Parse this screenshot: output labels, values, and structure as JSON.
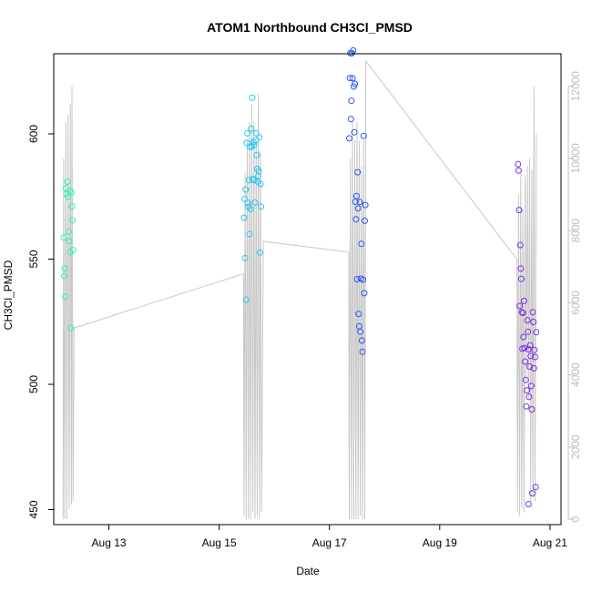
{
  "chart_data": {
    "type": "scatter",
    "title": "ATOM1 Northbound CH3Cl_PMSD",
    "xlabel": "Date",
    "ylabel": "CH3Cl_PMSD",
    "x_unit": "days (Aug 2020 day-of-month)",
    "xlim": [
      12.0,
      21.2
    ],
    "ylim": [
      444,
      632
    ],
    "y2lim": [
      -150,
      12900
    ],
    "x_ticks": [
      {
        "value": 13,
        "label": "Aug 13"
      },
      {
        "value": 15,
        "label": "Aug 15"
      },
      {
        "value": 17,
        "label": "Aug 17"
      },
      {
        "value": 19,
        "label": "Aug 19"
      },
      {
        "value": 21,
        "label": "Aug 21"
      }
    ],
    "y_ticks": [
      450,
      500,
      550,
      600
    ],
    "y2_ticks": [
      0,
      2000,
      4000,
      6000,
      8000,
      10000,
      12000
    ],
    "colors": {
      "axes": "#000000",
      "secondary_axis": "#bdbdbd",
      "line": "#c8c8c8",
      "cluster1": "#33f0b8",
      "cluster2": "#27c8f0",
      "cluster3": "#2a55f0",
      "cluster4": "#7a33e0"
    },
    "series": [
      {
        "color": "#33f0b8",
        "points": [
          {
            "x": 12.18,
            "y": 558.6
          },
          {
            "x": 12.19,
            "y": 543.2
          },
          {
            "x": 12.2,
            "y": 546.3
          },
          {
            "x": 12.21,
            "y": 535.0
          },
          {
            "x": 12.22,
            "y": 578.2
          },
          {
            "x": 12.23,
            "y": 576.0
          },
          {
            "x": 12.25,
            "y": 580.9
          },
          {
            "x": 12.26,
            "y": 574.9
          },
          {
            "x": 12.27,
            "y": 561.0
          },
          {
            "x": 12.28,
            "y": 557.2
          },
          {
            "x": 12.29,
            "y": 577.3
          },
          {
            "x": 12.3,
            "y": 552.8
          },
          {
            "x": 12.31,
            "y": 522.5
          },
          {
            "x": 12.32,
            "y": 576.6
          },
          {
            "x": 12.33,
            "y": 571.1
          },
          {
            "x": 12.34,
            "y": 565.5
          },
          {
            "x": 12.35,
            "y": 553.6
          }
        ]
      },
      {
        "color": "#27c8f0",
        "points": [
          {
            "x": 15.45,
            "y": 566.5
          },
          {
            "x": 15.46,
            "y": 574.0
          },
          {
            "x": 15.47,
            "y": 550.4
          },
          {
            "x": 15.48,
            "y": 577.8
          },
          {
            "x": 15.49,
            "y": 533.8
          },
          {
            "x": 15.5,
            "y": 596.4
          },
          {
            "x": 15.51,
            "y": 600.2
          },
          {
            "x": 15.52,
            "y": 572.5
          },
          {
            "x": 15.53,
            "y": 570.9
          },
          {
            "x": 15.54,
            "y": 581.5
          },
          {
            "x": 15.55,
            "y": 560.0
          },
          {
            "x": 15.56,
            "y": 594.8
          },
          {
            "x": 15.57,
            "y": 570.0
          },
          {
            "x": 15.58,
            "y": 602.0
          },
          {
            "x": 15.59,
            "y": 595.0
          },
          {
            "x": 15.6,
            "y": 614.4
          },
          {
            "x": 15.61,
            "y": 582.0
          },
          {
            "x": 15.62,
            "y": 596.7
          },
          {
            "x": 15.63,
            "y": 595.5
          },
          {
            "x": 15.64,
            "y": 581.5
          },
          {
            "x": 15.65,
            "y": 572.6
          },
          {
            "x": 15.66,
            "y": 597.4
          },
          {
            "x": 15.67,
            "y": 600.3
          },
          {
            "x": 15.68,
            "y": 591.5
          },
          {
            "x": 15.69,
            "y": 586.0
          },
          {
            "x": 15.7,
            "y": 580.9
          },
          {
            "x": 15.71,
            "y": 583.2
          },
          {
            "x": 15.72,
            "y": 585.1
          },
          {
            "x": 15.73,
            "y": 598.6
          },
          {
            "x": 15.74,
            "y": 552.6
          },
          {
            "x": 15.75,
            "y": 580.0
          },
          {
            "x": 15.76,
            "y": 571.0
          }
        ]
      },
      {
        "color": "#2a55f0",
        "points": [
          {
            "x": 17.36,
            "y": 598.2
          },
          {
            "x": 17.37,
            "y": 622.3
          },
          {
            "x": 17.38,
            "y": 632.2
          },
          {
            "x": 17.39,
            "y": 605.9
          },
          {
            "x": 17.4,
            "y": 613.2
          },
          {
            "x": 17.41,
            "y": 632.2
          },
          {
            "x": 17.42,
            "y": 622.2
          },
          {
            "x": 17.43,
            "y": 633.3
          },
          {
            "x": 17.44,
            "y": 618.9
          },
          {
            "x": 17.45,
            "y": 600.6
          },
          {
            "x": 17.46,
            "y": 620.0
          },
          {
            "x": 17.47,
            "y": 572.9
          },
          {
            "x": 17.48,
            "y": 565.9
          },
          {
            "x": 17.49,
            "y": 575.2
          },
          {
            "x": 17.5,
            "y": 542.0
          },
          {
            "x": 17.51,
            "y": 584.7
          },
          {
            "x": 17.52,
            "y": 570.3
          },
          {
            "x": 17.53,
            "y": 528.1
          },
          {
            "x": 17.54,
            "y": 523.2
          },
          {
            "x": 17.55,
            "y": 572.8
          },
          {
            "x": 17.56,
            "y": 521.0
          },
          {
            "x": 17.57,
            "y": 542.2
          },
          {
            "x": 17.58,
            "y": 556.1
          },
          {
            "x": 17.59,
            "y": 517.5
          },
          {
            "x": 17.6,
            "y": 513.0
          },
          {
            "x": 17.61,
            "y": 541.8
          },
          {
            "x": 17.62,
            "y": 599.2
          },
          {
            "x": 17.63,
            "y": 536.4
          },
          {
            "x": 17.64,
            "y": 565.3
          },
          {
            "x": 17.65,
            "y": 571.6
          }
        ]
      },
      {
        "color": "#7a33e0",
        "points": [
          {
            "x": 20.42,
            "y": 587.9
          },
          {
            "x": 20.43,
            "y": 585.4
          },
          {
            "x": 20.44,
            "y": 569.6
          },
          {
            "x": 20.45,
            "y": 531.3
          },
          {
            "x": 20.46,
            "y": 555.6
          },
          {
            "x": 20.47,
            "y": 546.2
          },
          {
            "x": 20.48,
            "y": 542.1
          },
          {
            "x": 20.49,
            "y": 528.8
          },
          {
            "x": 20.5,
            "y": 514.2
          },
          {
            "x": 20.51,
            "y": 528.5
          },
          {
            "x": 20.52,
            "y": 518.9
          },
          {
            "x": 20.53,
            "y": 533.3
          },
          {
            "x": 20.54,
            "y": 514.5
          },
          {
            "x": 20.55,
            "y": 509.1
          },
          {
            "x": 20.56,
            "y": 501.7
          },
          {
            "x": 20.57,
            "y": 491.2
          },
          {
            "x": 20.58,
            "y": 497.6
          },
          {
            "x": 20.59,
            "y": 525.6
          },
          {
            "x": 20.6,
            "y": 521.0
          },
          {
            "x": 20.61,
            "y": 514.0
          },
          {
            "x": 20.62,
            "y": 495.0
          },
          {
            "x": 20.63,
            "y": 507.1
          },
          {
            "x": 20.64,
            "y": 515.6
          },
          {
            "x": 20.65,
            "y": 511.3
          },
          {
            "x": 20.66,
            "y": 499.4
          },
          {
            "x": 20.67,
            "y": 490.0
          },
          {
            "x": 20.68,
            "y": 456.5
          },
          {
            "x": 20.69,
            "y": 528.8
          },
          {
            "x": 20.7,
            "y": 524.9
          },
          {
            "x": 20.71,
            "y": 506.4
          },
          {
            "x": 20.72,
            "y": 513.7
          },
          {
            "x": 20.73,
            "y": 510.9
          },
          {
            "x": 20.74,
            "y": 459.0
          },
          {
            "x": 20.75,
            "y": 520.8
          },
          {
            "x": 20.61,
            "y": 452.2
          }
        ]
      }
    ],
    "secondary_series": {
      "type": "line",
      "color": "#c8c8c8",
      "axis": "right",
      "points": [
        {
          "x": 12.17,
          "y": 0
        },
        {
          "x": 12.18,
          "y": 10000
        },
        {
          "x": 12.2,
          "y": 0
        },
        {
          "x": 12.22,
          "y": 11000
        },
        {
          "x": 12.24,
          "y": 0
        },
        {
          "x": 12.26,
          "y": 11200
        },
        {
          "x": 12.28,
          "y": 300
        },
        {
          "x": 12.3,
          "y": 11500
        },
        {
          "x": 12.32,
          "y": 400
        },
        {
          "x": 12.33,
          "y": 12000
        },
        {
          "x": 12.35,
          "y": 500
        },
        {
          "x": 12.37,
          "y": 5300
        },
        {
          "x": 15.44,
          "y": 6800
        },
        {
          "x": 15.45,
          "y": 100
        },
        {
          "x": 15.47,
          "y": 9600
        },
        {
          "x": 15.49,
          "y": 0
        },
        {
          "x": 15.51,
          "y": 10500
        },
        {
          "x": 15.53,
          "y": 0
        },
        {
          "x": 15.55,
          "y": 11000
        },
        {
          "x": 15.57,
          "y": 0
        },
        {
          "x": 15.59,
          "y": 11500
        },
        {
          "x": 15.61,
          "y": 200
        },
        {
          "x": 15.63,
          "y": 11000
        },
        {
          "x": 15.65,
          "y": 0
        },
        {
          "x": 15.67,
          "y": 10500
        },
        {
          "x": 15.69,
          "y": 100
        },
        {
          "x": 15.71,
          "y": 11800
        },
        {
          "x": 15.73,
          "y": 0
        },
        {
          "x": 15.75,
          "y": 10200
        },
        {
          "x": 15.77,
          "y": 200
        },
        {
          "x": 15.8,
          "y": 7700
        },
        {
          "x": 17.35,
          "y": 7400
        },
        {
          "x": 17.36,
          "y": 0
        },
        {
          "x": 17.38,
          "y": 10000
        },
        {
          "x": 17.4,
          "y": 0
        },
        {
          "x": 17.42,
          "y": 11000
        },
        {
          "x": 17.44,
          "y": 0
        },
        {
          "x": 17.46,
          "y": 10500
        },
        {
          "x": 17.48,
          "y": 0
        },
        {
          "x": 17.5,
          "y": 11000
        },
        {
          "x": 17.52,
          "y": 0
        },
        {
          "x": 17.54,
          "y": 10500
        },
        {
          "x": 17.56,
          "y": 100
        },
        {
          "x": 17.58,
          "y": 9800
        },
        {
          "x": 17.6,
          "y": 0
        },
        {
          "x": 17.62,
          "y": 10500
        },
        {
          "x": 17.64,
          "y": 0
        },
        {
          "x": 17.66,
          "y": 12700
        },
        {
          "x": 20.4,
          "y": 7200
        },
        {
          "x": 20.41,
          "y": 200
        },
        {
          "x": 20.43,
          "y": 9000
        },
        {
          "x": 20.45,
          "y": 100
        },
        {
          "x": 20.47,
          "y": 9600
        },
        {
          "x": 20.49,
          "y": 300
        },
        {
          "x": 20.51,
          "y": 8600
        },
        {
          "x": 20.53,
          "y": 200
        },
        {
          "x": 20.55,
          "y": 9500
        },
        {
          "x": 20.57,
          "y": 3800
        },
        {
          "x": 20.59,
          "y": 9800
        },
        {
          "x": 20.61,
          "y": 3300
        },
        {
          "x": 20.63,
          "y": 10000
        },
        {
          "x": 20.65,
          "y": 500
        },
        {
          "x": 20.67,
          "y": 9700
        },
        {
          "x": 20.69,
          "y": 600
        },
        {
          "x": 20.71,
          "y": 12000
        },
        {
          "x": 20.73,
          "y": 500
        },
        {
          "x": 20.75,
          "y": 10700
        }
      ]
    },
    "grid": false,
    "legend": "none"
  }
}
